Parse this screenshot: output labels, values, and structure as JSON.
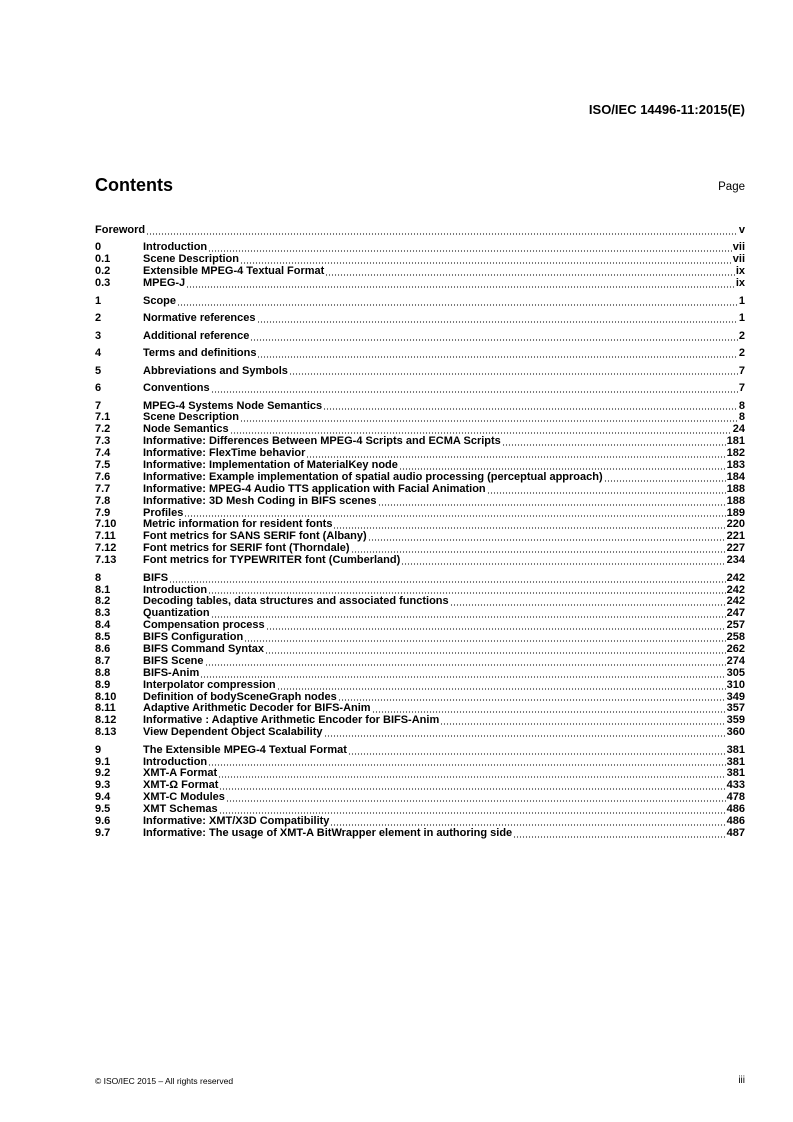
{
  "header": "ISO/IEC 14496-11:2015(E)",
  "title": "Contents",
  "page_label": "Page",
  "groups": [
    [
      [
        "",
        "Foreword",
        "v"
      ]
    ],
    [
      [
        "0",
        "Introduction",
        "vii"
      ],
      [
        "0.1",
        "Scene Description",
        "vii"
      ],
      [
        "0.2",
        "Extensible MPEG-4 Textual Format",
        "ix"
      ],
      [
        "0.3",
        "MPEG-J",
        "ix"
      ]
    ],
    [
      [
        "1",
        "Scope",
        "1"
      ]
    ],
    [
      [
        "2",
        "Normative references",
        "1"
      ]
    ],
    [
      [
        "3",
        "Additional reference",
        "2"
      ]
    ],
    [
      [
        "4",
        "Terms and definitions",
        "2"
      ]
    ],
    [
      [
        "5",
        "Abbreviations and Symbols",
        "7"
      ]
    ],
    [
      [
        "6",
        "Conventions",
        "7"
      ]
    ],
    [
      [
        "7",
        "MPEG-4 Systems Node Semantics",
        "8"
      ],
      [
        "7.1",
        "Scene Description",
        "8"
      ],
      [
        "7.2",
        "Node Semantics",
        "24"
      ],
      [
        "7.3",
        "Informative: Differences Between MPEG-4 Scripts and ECMA Scripts",
        "181"
      ],
      [
        "7.4",
        "Informative: FlexTime behavior",
        "182"
      ],
      [
        "7.5",
        "Informative: Implementation of MaterialKey node",
        "183"
      ],
      [
        "7.6",
        "Informative: Example implementation of spatial audio processing (perceptual approach)",
        "184"
      ],
      [
        "7.7",
        "Informative: MPEG-4 Audio TTS application with Facial Animation",
        "188"
      ],
      [
        "7.8",
        "Informative: 3D Mesh Coding in BIFS scenes",
        "188"
      ],
      [
        "7.9",
        "Profiles",
        "189"
      ],
      [
        "7.10",
        "Metric information for resident fonts",
        "220"
      ],
      [
        "7.11",
        "Font metrics for SANS SERIF font (Albany)",
        "221"
      ],
      [
        "7.12",
        "Font metrics for SERIF font (Thorndale)",
        "227"
      ],
      [
        "7.13",
        "Font metrics for TYPEWRITER font (Cumberland)",
        "234"
      ]
    ],
    [
      [
        "8",
        "BIFS",
        "242"
      ],
      [
        "8.1",
        "Introduction",
        "242"
      ],
      [
        "8.2",
        "Decoding tables, data structures and associated functions",
        "242"
      ],
      [
        "8.3",
        "Quantization",
        "247"
      ],
      [
        "8.4",
        "Compensation process",
        "257"
      ],
      [
        "8.5",
        "BIFS Configuration",
        "258"
      ],
      [
        "8.6",
        "BIFS Command Syntax",
        "262"
      ],
      [
        "8.7",
        "BIFS Scene",
        "274"
      ],
      [
        "8.8",
        "BIFS-Anim",
        "305"
      ],
      [
        "8.9",
        "Interpolator compression",
        "310"
      ],
      [
        "8.10",
        "Definition of bodySceneGraph nodes",
        "349"
      ],
      [
        "8.11",
        "Adaptive Arithmetic Decoder for BIFS-Anim",
        "357"
      ],
      [
        "8.12",
        "Informative : Adaptive Arithmetic Encoder for BIFS-Anim",
        "359"
      ],
      [
        "8.13",
        "View Dependent Object Scalability",
        "360"
      ]
    ],
    [
      [
        "9",
        "The Extensible MPEG-4 Textual Format",
        "381"
      ],
      [
        "9.1",
        "Introduction",
        "381"
      ],
      [
        "9.2",
        "XMT-A Format",
        "381"
      ],
      [
        "9.3",
        "XMT-Ω  Format",
        "433"
      ],
      [
        "9.4",
        "XMT-C Modules",
        "478"
      ],
      [
        "9.5",
        "XMT Schemas",
        "486"
      ],
      [
        "9.6",
        "Informative: XMT/X3D Compatibility",
        "486"
      ],
      [
        "9.7",
        "Informative: The usage of XMT-A BitWrapper element in authoring side",
        "487"
      ]
    ]
  ],
  "footer": {
    "copyright": "© ISO/IEC 2015 – All rights reserved",
    "page": "iii"
  }
}
